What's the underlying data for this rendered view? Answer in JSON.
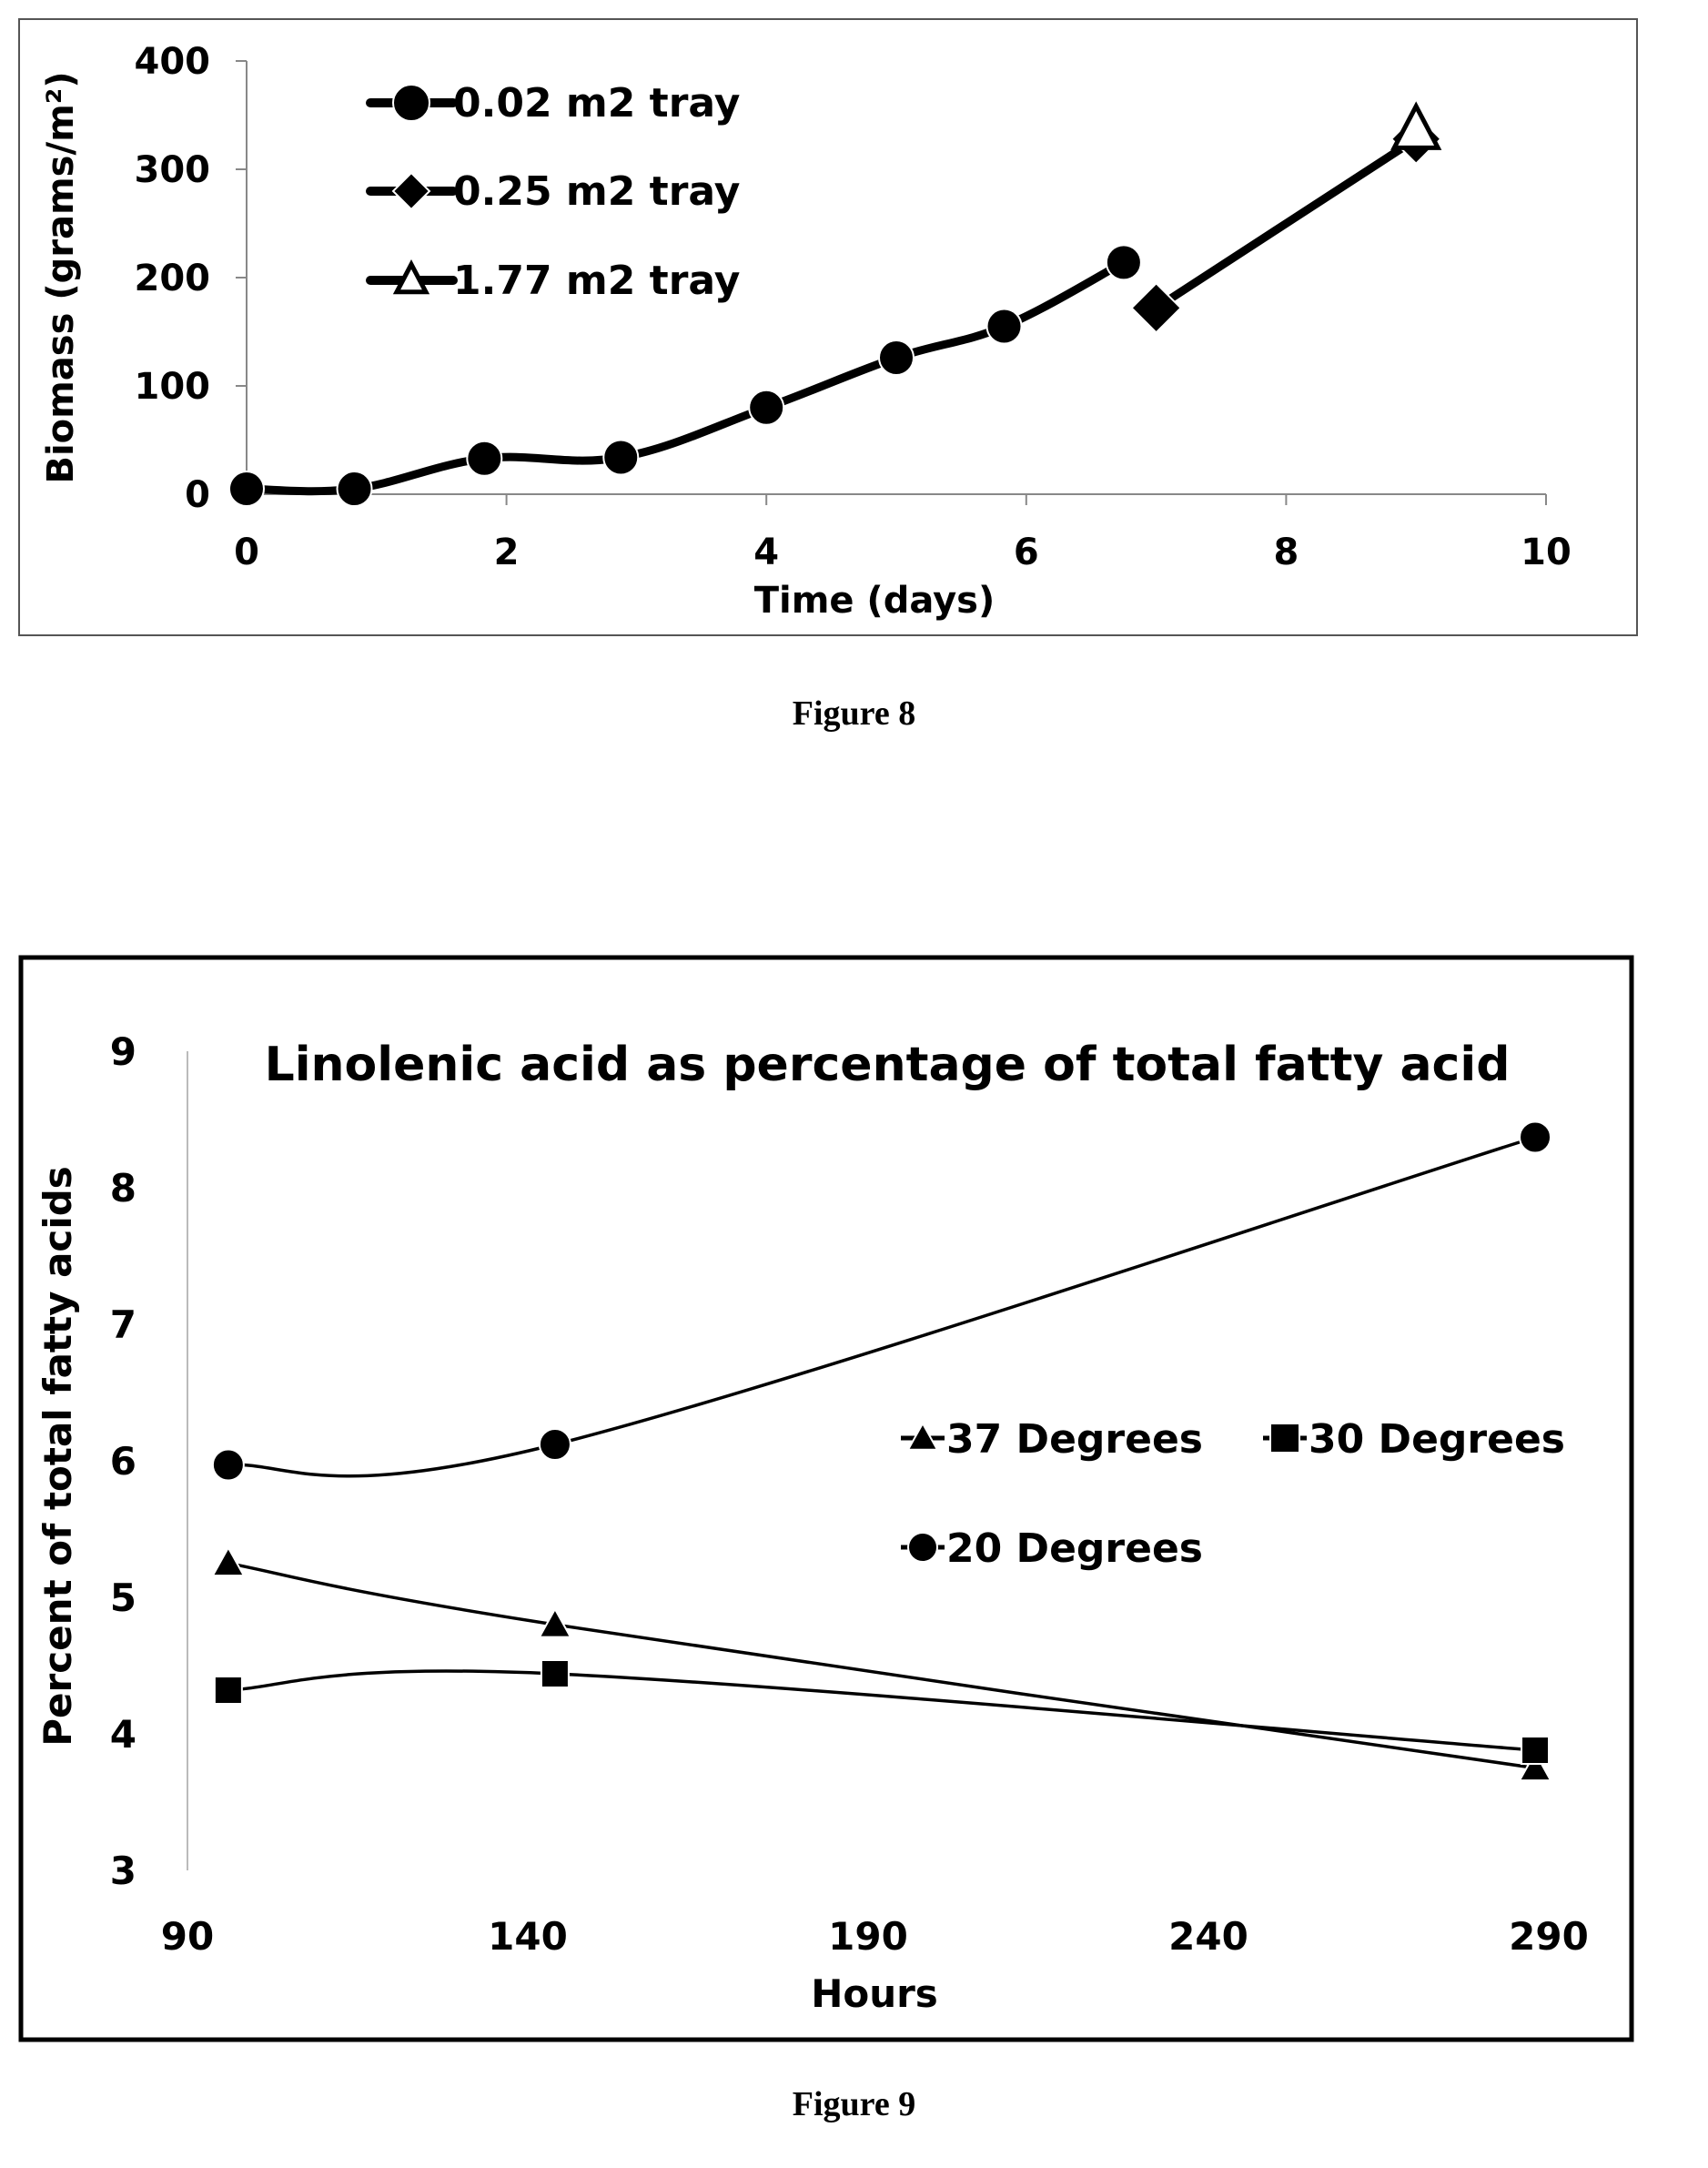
{
  "figures": [
    {
      "caption": "Figure 8"
    },
    {
      "caption": "Figure 9"
    }
  ],
  "chart_data": [
    {
      "type": "line",
      "title": "",
      "xlabel": "Time (days)",
      "ylabel": "Biomass (grams/m²)",
      "xlim": [
        0,
        10
      ],
      "ylim": [
        0,
        400
      ],
      "x_ticks": [
        "0",
        "2",
        "4",
        "6",
        "8",
        "10"
      ],
      "y_ticks": [
        "0",
        "100",
        "200",
        "300",
        "400"
      ],
      "grid": false,
      "legend_position": "top-left",
      "series": [
        {
          "name": "0.02 m2 tray",
          "marker": "circle",
          "x": [
            0,
            0.83,
            1.83,
            2.88,
            4,
            5,
            5.83,
            6.75
          ],
          "y": [
            5,
            5,
            33,
            34,
            80,
            126,
            155,
            214
          ]
        },
        {
          "name": "0.25 m2 tray",
          "marker": "diamond",
          "x": [
            7,
            9
          ],
          "y": [
            172,
            328
          ]
        },
        {
          "name": "1.77 m2 tray",
          "marker": "triangle-open",
          "x": [
            9
          ],
          "y": [
            336
          ]
        }
      ]
    },
    {
      "type": "line",
      "title": "Linolenic acid as percentage of total fatty acid",
      "xlabel": "Hours",
      "ylabel": "Percent of total fatty acids",
      "xlim": [
        90,
        290
      ],
      "ylim": [
        3,
        9
      ],
      "x_ticks": [
        "90",
        "140",
        "190",
        "240",
        "290"
      ],
      "y_ticks": [
        "3",
        "4",
        "5",
        "6",
        "7",
        "8",
        "9"
      ],
      "grid": false,
      "legend_position": "right-middle",
      "series": [
        {
          "name": "37 Degrees",
          "marker": "triangle",
          "x": [
            96,
            144,
            288
          ],
          "y": [
            5.25,
            4.8,
            3.75
          ]
        },
        {
          "name": "30 Degrees",
          "marker": "square",
          "x": [
            96,
            144,
            288
          ],
          "y": [
            4.32,
            4.44,
            3.88
          ]
        },
        {
          "name": "20 Degrees",
          "marker": "circle",
          "x": [
            96,
            144,
            288
          ],
          "y": [
            5.97,
            6.12,
            8.37
          ]
        }
      ]
    }
  ]
}
